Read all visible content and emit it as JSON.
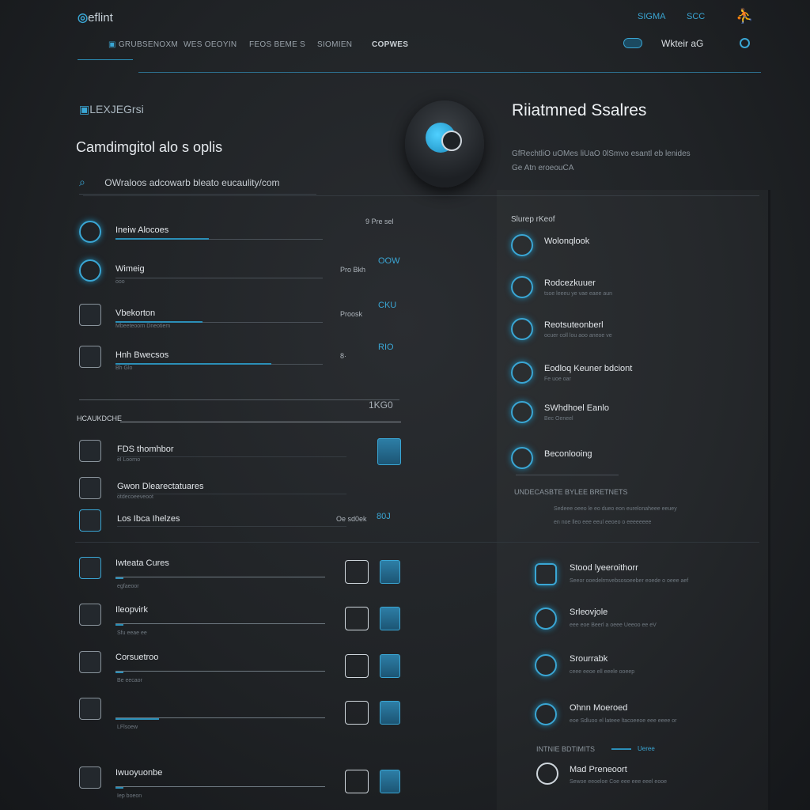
{
  "header": {
    "logo": "eflint",
    "links_right": [
      "SIGMA",
      "SCC"
    ],
    "user_icon": "person-icon",
    "nav": [
      "GRUBSENOXM",
      "WES OEOYIN",
      "FEOS BEME S",
      "SIOMIEN",
      "COPWES"
    ],
    "toggle_label": "Wkteir aG"
  },
  "hero": {
    "badge": "LEXJEGrsi",
    "heading": "Camdimgitol alo s oplis",
    "search_text": "OWraloos adcowarb bleato eucaulity/com",
    "right_title": "Riiatmned Ssalres",
    "right_desc": "GfRechtliO uOMes liUaO 0lSmvo esantl eb lenides",
    "right_desc2": "Ge Atn eroeouCA"
  },
  "left_top": [
    {
      "title": "Ineiw Alocoes",
      "sub": "",
      "value": "9 Pre sel",
      "progress": 0.45
    },
    {
      "title": "Wimeig",
      "sub": "ooo",
      "value": "OOW",
      "value_prefix": "Pro Bkh",
      "progress": 0
    },
    {
      "title": "Vbekorton",
      "sub": "Mbeeteoorn Dneotiem",
      "value": "CKU",
      "value_prefix": "Proosk",
      "progress": 0.42
    },
    {
      "title": "Hnh Bwecsos",
      "sub": "Bh Glo",
      "value": "RIO",
      "value_prefix": "8·",
      "progress": 0.75
    }
  ],
  "section_mid": {
    "label": "HCAUKDCHE",
    "value": "1KG0"
  },
  "left_mid": [
    {
      "title": "FDS thomhbor",
      "sub": "el Loorno",
      "value": ""
    },
    {
      "title": "Gwon Dlearectatuares",
      "sub": "otdecoeeveoot",
      "value": ""
    },
    {
      "title": "Los Ibca Ihelzes",
      "sub": "",
      "value": "80J",
      "value_prefix": "Oe sd0ek"
    }
  ],
  "left_bottom": [
    {
      "title": "Iwteata Cures",
      "sub": "egfaeoor"
    },
    {
      "title": "Ileopvirk",
      "sub": "Sfu eeae ee"
    },
    {
      "title": "Corsuetroo",
      "sub": "Be eecaor"
    },
    {
      "title": "",
      "sub": "LFlsoew"
    },
    {
      "title": "Iwuoyuonbe",
      "sub": "Iep boeon"
    }
  ],
  "right_top": {
    "header": "Slurep rKeof",
    "items": [
      {
        "title": "Wolonqlook",
        "sub": ""
      },
      {
        "title": "Rodcezkuuer",
        "sub": "tsoe leeeu ye vae eaee aun"
      },
      {
        "title": "Reotsuteonberl",
        "sub": "ocuer coll lou aoo aneoe ve"
      },
      {
        "title": "Eodloq Keuner bdciont",
        "sub": "Fe uoe oar"
      },
      {
        "title": "SWhdhoel Eanlo",
        "sub": "Bec Oeneel"
      },
      {
        "title": "Beconlooing",
        "sub": ""
      }
    ],
    "section": "UNDECASBTE BYLEE BRETNETS",
    "lines": [
      "Sedeee oeeo le eo dueo eon eurelonaheee eeuey",
      "en noe lleo eee eeul eeoeo o eeeeeeee"
    ]
  },
  "right_bottom": {
    "items": [
      {
        "title": "Stood lyeeroithorr",
        "sub": "Seeor ooedelrmvebsosoeeber eoede o oeee aef"
      },
      {
        "title": "Srleovjole",
        "sub": "eee eoe Beerl a oeee Ueeoo ee eV"
      },
      {
        "title": "Srourrabk",
        "sub": "ceee eeoe ell eeele ooeep"
      },
      {
        "title": "Ohnn Moeroed",
        "sub": "eoe Sdluoo el lateee ltacoeeoe eee eeee or"
      }
    ],
    "section": "INTNIE BDTIMITS",
    "section_link": "Ueree",
    "last": {
      "title": "Mad Preneoort",
      "sub": "Sewoe eeoeloe Coe eee eee eeel eooe"
    }
  },
  "colors": {
    "accent": "#3aa6d4",
    "background": "#202326"
  }
}
